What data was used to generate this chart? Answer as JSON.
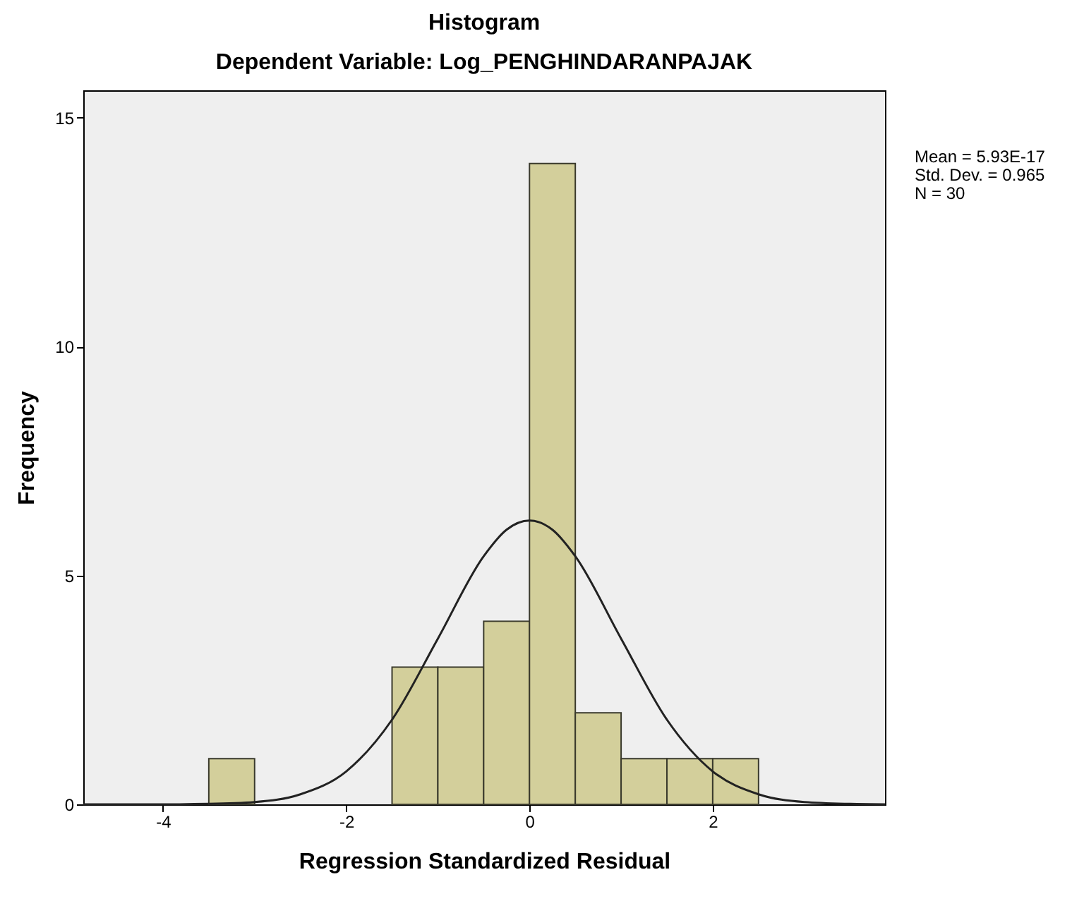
{
  "chart_data": {
    "type": "histogram",
    "title": "Histogram",
    "subtitle": "Dependent Variable: Log_PENGHINDARANPAJAK",
    "xlabel": "Regression Standardized Residual",
    "ylabel": "Frequency",
    "xlim": [
      -4.87,
      3.88
    ],
    "xticks": [
      {
        "value": -4,
        "label": "-4"
      },
      {
        "value": -2,
        "label": "-2"
      },
      {
        "value": 0,
        "label": "0"
      },
      {
        "value": 2,
        "label": "2"
      }
    ],
    "ylim": [
      0,
      15.6
    ],
    "yticks": [
      0,
      5,
      10,
      15
    ],
    "grid": false,
    "annotations": [
      "Mean = 5.93E-17",
      "Std. Dev. = 0.965",
      "N = 30"
    ],
    "series": [
      {
        "color": "#d3cf9b",
        "bins": [
          -3.5,
          -3,
          -2.5,
          -2,
          -1.5,
          -1,
          -0.5,
          0,
          0.5,
          1,
          1.5,
          2,
          2.5
        ],
        "values": [
          1,
          0,
          0,
          0,
          3,
          3,
          4,
          14,
          2,
          1,
          1,
          1
        ]
      },
      {
        "type": "line",
        "color": "#222222",
        "marker": "none",
        "line_style": "solid",
        "x": [
          -4.87,
          -4,
          -3.5,
          -3,
          -2.5,
          -2,
          -1.5,
          -1,
          -0.5,
          -0.25,
          0,
          0.25,
          0.5,
          1,
          1.5,
          2,
          2.5,
          3,
          3.5,
          3.88
        ],
        "values": [
          0,
          0,
          0.01,
          0.05,
          0.22,
          0.72,
          1.85,
          3.62,
          5.42,
          6.0,
          6.2,
          6.0,
          5.42,
          3.62,
          1.85,
          0.72,
          0.22,
          0.05,
          0.01,
          0
        ]
      }
    ]
  }
}
